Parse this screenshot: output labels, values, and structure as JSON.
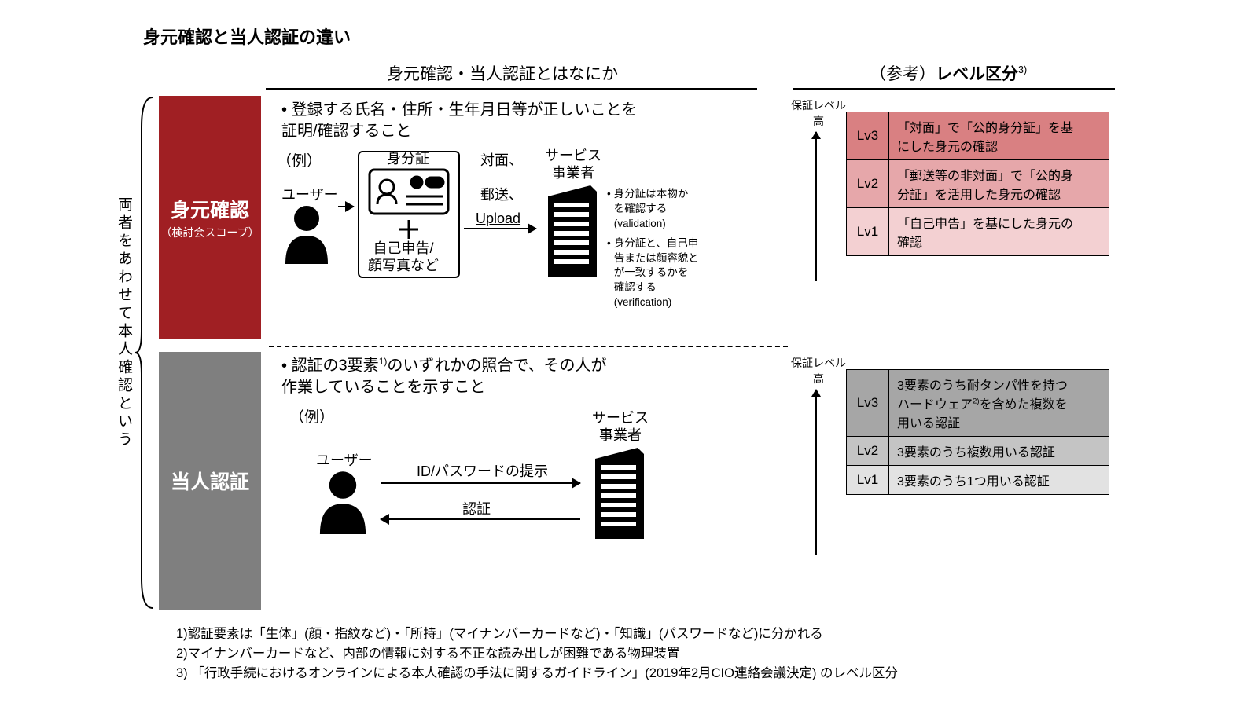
{
  "title": "身元確認と当人認証の違い",
  "columns": {
    "center_header": "身元確認・当人認証とはなにか",
    "right_header_prefix": "（参考）",
    "right_header": "レベル区分",
    "right_header_sup": "3)"
  },
  "side_label": "両者をあわせて本人確認という",
  "colors": {
    "red_block": "#a01f23",
    "gray_block": "#7f7f7f",
    "lv3_red": "#d98082",
    "lv2_red": "#e6a7aa",
    "lv1_red": "#f3d0d2",
    "lv3_gray": "#a6a6a6",
    "lv2_gray": "#c4c4c4",
    "lv1_gray": "#e2e2e2"
  },
  "identity": {
    "block_title": "身元確認",
    "block_sub": "（検討会スコープ）",
    "bullet": "登録する氏名・住所・生年月日等が正しいことを\n証明/確認すること",
    "example_label": "（例）",
    "user_label": "ユーザー",
    "idcard_label": "身分証",
    "self_label": "自己申告/\n顔写真など",
    "methods_line1": "対面、",
    "methods_line2": "郵送、",
    "methods_line3": "Upload",
    "provider_label": "サービス\n事業者",
    "notes": [
      {
        "text": "身分証は本物か\nを確認する",
        "paren": "(validation)"
      },
      {
        "text": "身分証と、自己申\n告または顔容貌と\nが一致するかを\n確認する",
        "paren": "(verification)"
      }
    ],
    "assure_label": "保証レベル\n高",
    "levels": [
      {
        "lv": "Lv3",
        "desc": "「対面」で「公的身分証」を基\nにした身元の確認",
        "color_key": "lv3_red"
      },
      {
        "lv": "Lv2",
        "desc": "「郵送等の非対面」で「公的身\n分証」を活用した身元の確認",
        "color_key": "lv2_red"
      },
      {
        "lv": "Lv1",
        "desc": "「自己申告」を基にした身元の\n確認",
        "color_key": "lv1_red"
      }
    ]
  },
  "auth": {
    "block_title": "当人認証",
    "bullet": "認証の3要素",
    "bullet_sup": "1)",
    "bullet_tail": "のいずれかの照合で、その人が\n作業していることを示すこと",
    "example_label": "（例）",
    "user_label": "ユーザー",
    "provider_label": "サービス\n事業者",
    "flow_top": "ID/パスワードの提示",
    "flow_bottom": "認証",
    "assure_label": "保証レベル\n高",
    "levels": [
      {
        "lv": "Lv3",
        "desc_pre": "3要素のうち耐タンパ性を持つ\nハードウェア",
        "desc_sup": "2)",
        "desc_post": "を含めた複数を\n用いる認証",
        "color_key": "lv3_gray"
      },
      {
        "lv": "Lv2",
        "desc": "3要素のうち複数用いる認証",
        "color_key": "lv2_gray"
      },
      {
        "lv": "Lv1",
        "desc": "3要素のうち1つ用いる認証",
        "color_key": "lv1_gray"
      }
    ]
  },
  "footnotes": [
    "1)認証要素は「生体」(顔・指紋など)・「所持」(マイナンバーカードなど)・「知識」(パスワードなど)に分かれる",
    "2)マイナンバーカードなど、内部の情報に対する不正な読み出しが困難である物理装置",
    "3) 「行政手続におけるオンラインによる本人確認の手法に関するガイドライン」(2019年2月CIO連絡会議決定) のレベル区分"
  ]
}
